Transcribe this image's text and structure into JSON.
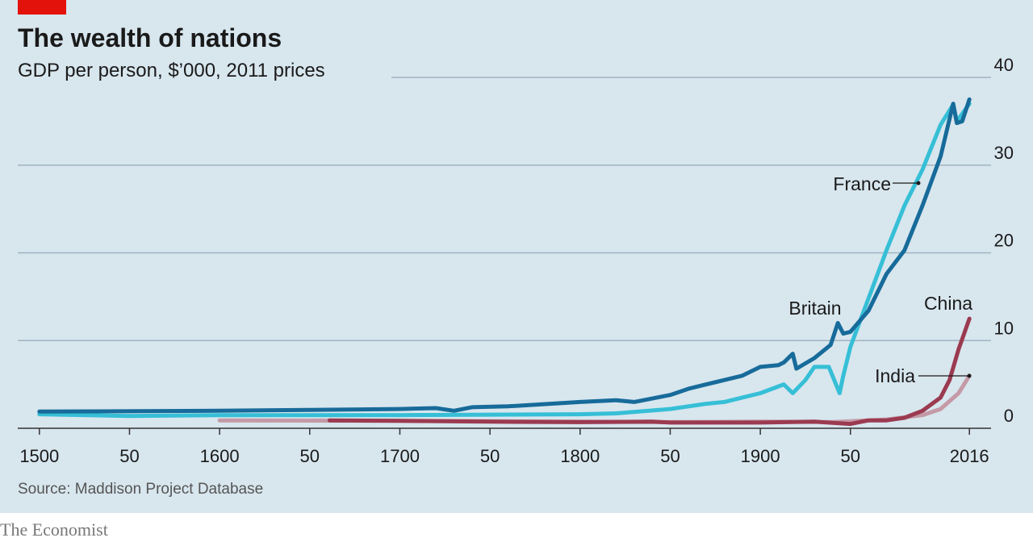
{
  "chart_data": {
    "type": "line",
    "title": "The wealth of nations",
    "subtitle": "GDP per person, $’000, 2011 prices",
    "source": "Source: Maddison Project Database",
    "publisher": "The Economist",
    "xlim": [
      1488,
      2028
    ],
    "ylim": [
      0,
      40
    ],
    "xticks": [
      1500,
      {
        "value": 1550,
        "label": "50"
      },
      1600,
      {
        "value": 1650,
        "label": "50"
      },
      1700,
      {
        "value": 1750,
        "label": "50"
      },
      1800,
      {
        "value": 1850,
        "label": "50"
      },
      1900,
      {
        "value": 1950,
        "label": "50"
      },
      2016
    ],
    "yticks": [
      0,
      10,
      20,
      30,
      40
    ],
    "grid": true,
    "series": [
      {
        "name": "India",
        "color": "#c49aa6",
        "x": [
          1600,
          1700,
          1800,
          1850,
          1900,
          1940,
          1950,
          1970,
          1990,
          2000,
          2010,
          2016
        ],
        "values": [
          0.9,
          0.85,
          0.75,
          0.7,
          0.75,
          0.7,
          0.8,
          1.0,
          1.5,
          2.2,
          4.0,
          6.0
        ]
      },
      {
        "name": "China",
        "color": "#9b3a50",
        "x": [
          1661,
          1700,
          1750,
          1800,
          1840,
          1850,
          1900,
          1930,
          1950,
          1960,
          1970,
          1980,
          1990,
          2000,
          2005,
          2010,
          2016
        ],
        "values": [
          0.9,
          0.85,
          0.75,
          0.7,
          0.75,
          0.65,
          0.65,
          0.75,
          0.5,
          0.9,
          0.9,
          1.2,
          2.0,
          3.5,
          5.5,
          9.0,
          12.5
        ]
      },
      {
        "name": "France",
        "color": "#36bfd6",
        "x": [
          1500,
          1550,
          1600,
          1700,
          1800,
          1820,
          1850,
          1870,
          1880,
          1890,
          1900,
          1913,
          1918,
          1925,
          1930,
          1938,
          1944,
          1946,
          1950,
          1960,
          1970,
          1980,
          1990,
          2000,
          2007,
          2009,
          2016
        ],
        "values": [
          1.6,
          1.4,
          1.5,
          1.5,
          1.6,
          1.7,
          2.2,
          2.8,
          3.0,
          3.5,
          4.0,
          5.0,
          4.0,
          5.5,
          7.0,
          7.0,
          4.0,
          6.0,
          9.3,
          14.8,
          20.3,
          25.4,
          29.5,
          34.6,
          36.9,
          35.0,
          37.0
        ]
      },
      {
        "name": "Britain",
        "color": "#176b9a",
        "x": [
          1500,
          1600,
          1650,
          1700,
          1720,
          1730,
          1740,
          1760,
          1800,
          1820,
          1830,
          1850,
          1860,
          1870,
          1880,
          1890,
          1900,
          1910,
          1913,
          1918,
          1920,
          1930,
          1939,
          1943,
          1946,
          1950,
          1960,
          1970,
          1980,
          1990,
          2000,
          2007,
          2009,
          2012,
          2016
        ],
        "values": [
          1.9,
          2.0,
          2.1,
          2.2,
          2.3,
          2.0,
          2.4,
          2.5,
          3.0,
          3.2,
          3.0,
          3.8,
          4.5,
          5.0,
          5.5,
          6.0,
          7.0,
          7.2,
          7.5,
          8.5,
          6.8,
          8.0,
          9.5,
          12.0,
          10.8,
          11.0,
          13.4,
          17.6,
          20.3,
          25.4,
          31.0,
          37.0,
          34.8,
          35.0,
          37.5
        ]
      }
    ]
  }
}
